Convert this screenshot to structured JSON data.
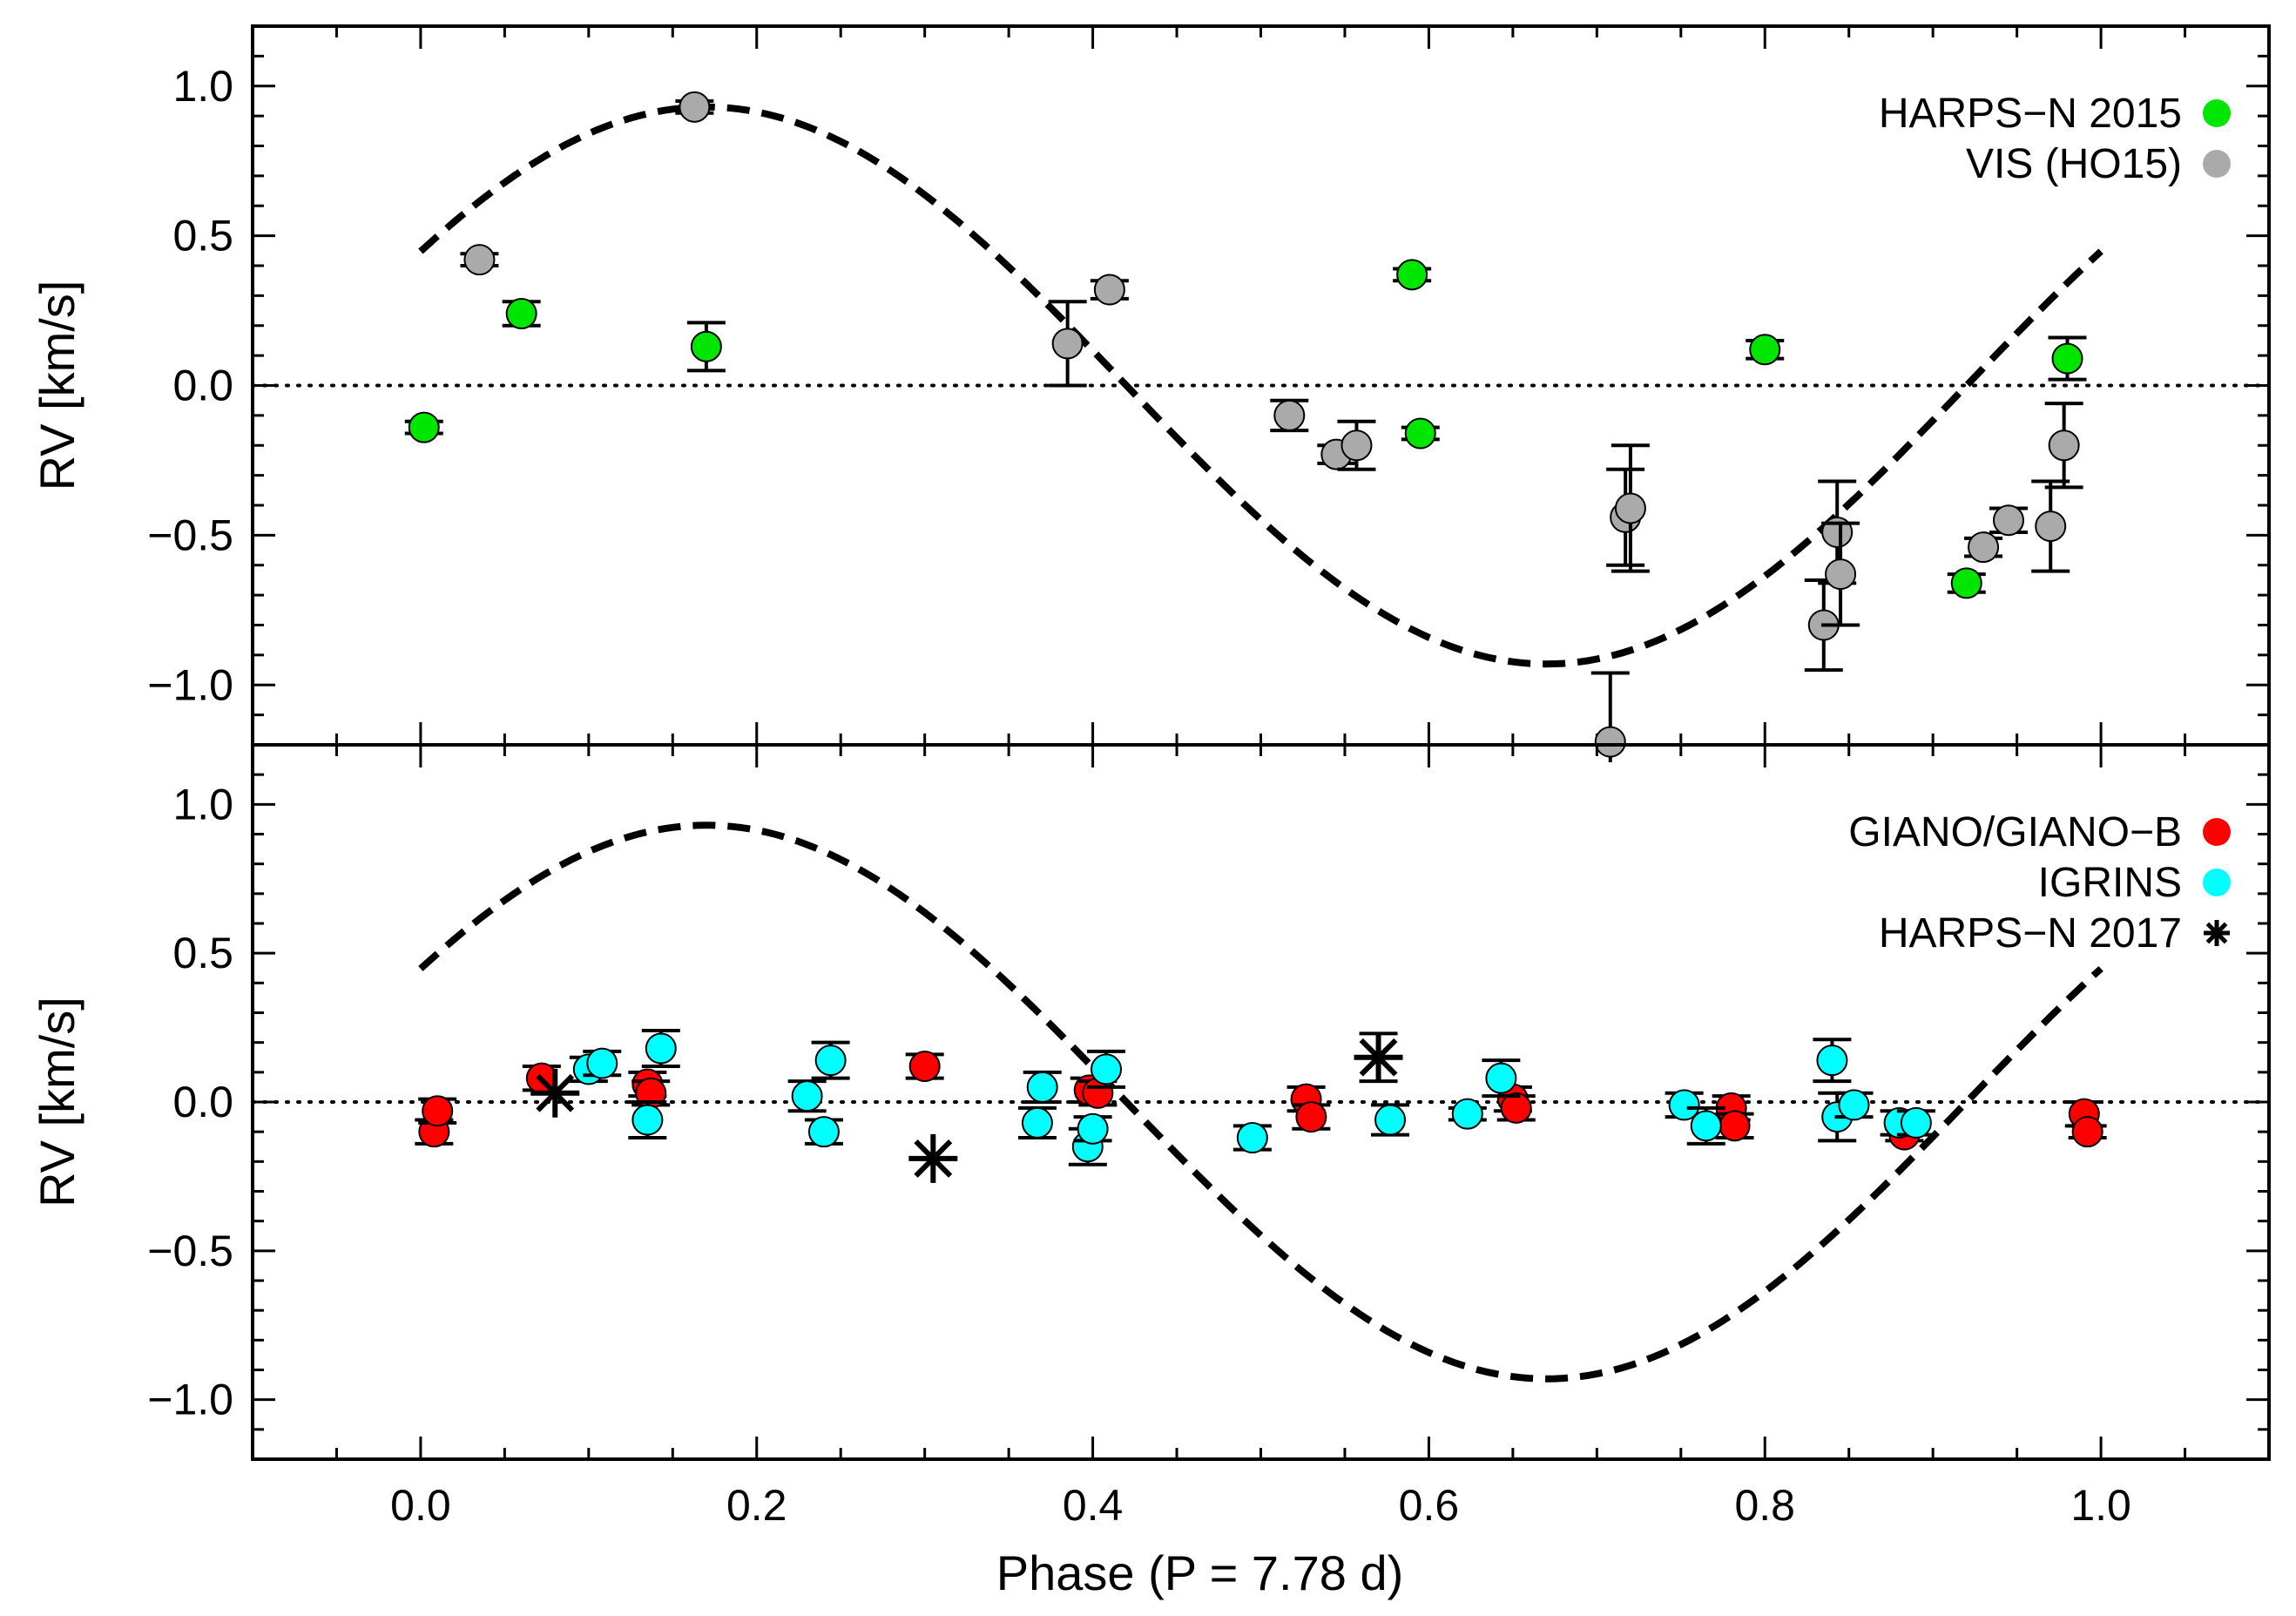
{
  "chart_data": [
    {
      "type": "scatter",
      "panel": "top",
      "xlabel": "",
      "ylabel": "RV [km/s]",
      "xlim": [
        -0.1,
        1.1
      ],
      "ylim": [
        -1.2,
        1.2
      ],
      "yticks": [
        "1.0",
        "0.5",
        "0.0",
        "−0.5",
        "−1.0"
      ],
      "ytick_values": [
        1.0,
        0.5,
        0.0,
        -0.5,
        -1.0
      ],
      "legend": [
        {
          "label": "HARPS−N 2015",
          "color": "#00e600",
          "marker": "circle"
        },
        {
          "label": "VIS (HO15)",
          "color": "#aaaaaa",
          "marker": "circle"
        }
      ],
      "model": "dashed sinusoid, K = 0.93 km/s, phase 0 to 1",
      "series": [
        {
          "name": "HARPS−N 2015",
          "color": "#00e600",
          "points": [
            [
              0.002,
              -0.14,
              0.02
            ],
            [
              0.06,
              0.24,
              0.04
            ],
            [
              0.17,
              0.13,
              0.08
            ],
            [
              0.59,
              0.37,
              0.02
            ],
            [
              0.595,
              -0.16,
              0.02
            ],
            [
              0.8,
              0.12,
              0.03
            ],
            [
              0.92,
              -0.66,
              0.03
            ],
            [
              0.98,
              0.09,
              0.07
            ]
          ]
        },
        {
          "name": "VIS (HO15)",
          "color": "#aaaaaa",
          "points": [
            [
              0.035,
              0.42,
              0.02
            ],
            [
              0.163,
              0.93,
              0.02
            ],
            [
              0.385,
              0.14,
              0.14
            ],
            [
              0.41,
              0.32,
              0.03
            ],
            [
              0.517,
              -0.1,
              0.05
            ],
            [
              0.545,
              -0.23,
              0.03
            ],
            [
              0.557,
              -0.2,
              0.08
            ],
            [
              0.708,
              -1.19,
              0.23
            ],
            [
              0.717,
              -0.44,
              0.16
            ],
            [
              0.72,
              -0.41,
              0.21
            ],
            [
              0.835,
              -0.8,
              0.15
            ],
            [
              0.843,
              -0.49,
              0.17
            ],
            [
              0.845,
              -0.63,
              0.17
            ],
            [
              0.93,
              -0.54,
              0.03
            ],
            [
              0.945,
              -0.45,
              0.04
            ],
            [
              0.97,
              -0.47,
              0.15
            ],
            [
              0.978,
              -0.2,
              0.14
            ]
          ]
        }
      ]
    },
    {
      "type": "scatter",
      "panel": "bottom",
      "xlabel": "Phase (P = 7.78 d)",
      "ylabel": "RV [km/s]",
      "xlim": [
        -0.1,
        1.1
      ],
      "ylim": [
        -1.2,
        1.2
      ],
      "xticks": [
        "0.0",
        "0.2",
        "0.4",
        "0.6",
        "0.8",
        "1.0"
      ],
      "xtick_values": [
        0.0,
        0.2,
        0.4,
        0.6,
        0.8,
        1.0
      ],
      "yticks": [
        "1.0",
        "0.5",
        "0.0",
        "−0.5",
        "−1.0"
      ],
      "ytick_values": [
        1.0,
        0.5,
        0.0,
        -0.5,
        -1.0
      ],
      "legend": [
        {
          "label": "GIANO/GIANO−B",
          "color": "#ff0000",
          "marker": "circle"
        },
        {
          "label": "IGRINS",
          "color": "#00ffff",
          "marker": "circle"
        },
        {
          "label": "HARPS−N 2017",
          "color": "#000000",
          "marker": "asterisk"
        }
      ],
      "model": "dashed sinusoid, K = 0.93 km/s, phase 0 to 1",
      "series": [
        {
          "name": "GIANO/GIANO−B",
          "color": "#ff0000",
          "points": [
            [
              0.008,
              -0.1,
              0.04
            ],
            [
              0.01,
              -0.03,
              0.04
            ],
            [
              0.072,
              0.08,
              0.04
            ],
            [
              0.135,
              0.06,
              0.04
            ],
            [
              0.137,
              0.03,
              0.04
            ],
            [
              0.3,
              0.12,
              0.04
            ],
            [
              0.398,
              0.04,
              0.04
            ],
            [
              0.403,
              0.03,
              0.04
            ],
            [
              0.527,
              0.01,
              0.04
            ],
            [
              0.53,
              -0.05,
              0.04
            ],
            [
              0.65,
              0.01,
              0.04
            ],
            [
              0.652,
              -0.02,
              0.04
            ],
            [
              0.78,
              -0.02,
              0.04
            ],
            [
              0.782,
              -0.08,
              0.04
            ],
            [
              0.883,
              -0.11,
              0.02
            ],
            [
              0.99,
              -0.04,
              0.04
            ],
            [
              0.992,
              -0.1,
              0.02
            ]
          ]
        },
        {
          "name": "IGRINS",
          "color": "#00ffff",
          "points": [
            [
              0.1,
              0.11,
              0.04
            ],
            [
              0.108,
              0.13,
              0.04
            ],
            [
              0.135,
              -0.06,
              0.06
            ],
            [
              0.143,
              0.18,
              0.06
            ],
            [
              0.23,
              0.02,
              0.05
            ],
            [
              0.24,
              -0.1,
              0.04
            ],
            [
              0.244,
              0.14,
              0.06
            ],
            [
              0.367,
              -0.07,
              0.05
            ],
            [
              0.37,
              0.05,
              0.05
            ],
            [
              0.397,
              -0.15,
              0.06
            ],
            [
              0.4,
              -0.09,
              0.04
            ],
            [
              0.408,
              0.11,
              0.06
            ],
            [
              0.495,
              -0.12,
              0.04
            ],
            [
              0.577,
              -0.06,
              0.05
            ],
            [
              0.623,
              -0.04,
              0.02
            ],
            [
              0.643,
              0.08,
              0.06
            ],
            [
              0.752,
              -0.01,
              0.04
            ],
            [
              0.765,
              -0.08,
              0.06
            ],
            [
              0.84,
              0.14,
              0.07
            ],
            [
              0.843,
              -0.05,
              0.08
            ],
            [
              0.853,
              -0.01,
              0.04
            ],
            [
              0.88,
              -0.07,
              0.04
            ],
            [
              0.89,
              -0.07,
              0.04
            ]
          ]
        },
        {
          "name": "HARPS−N 2017",
          "color": "#000000",
          "marker": "asterisk",
          "points": [
            [
              0.08,
              0.03,
              0.0
            ],
            [
              0.305,
              -0.19,
              0.0
            ],
            [
              0.57,
              0.15,
              0.08
            ]
          ]
        }
      ]
    }
  ]
}
